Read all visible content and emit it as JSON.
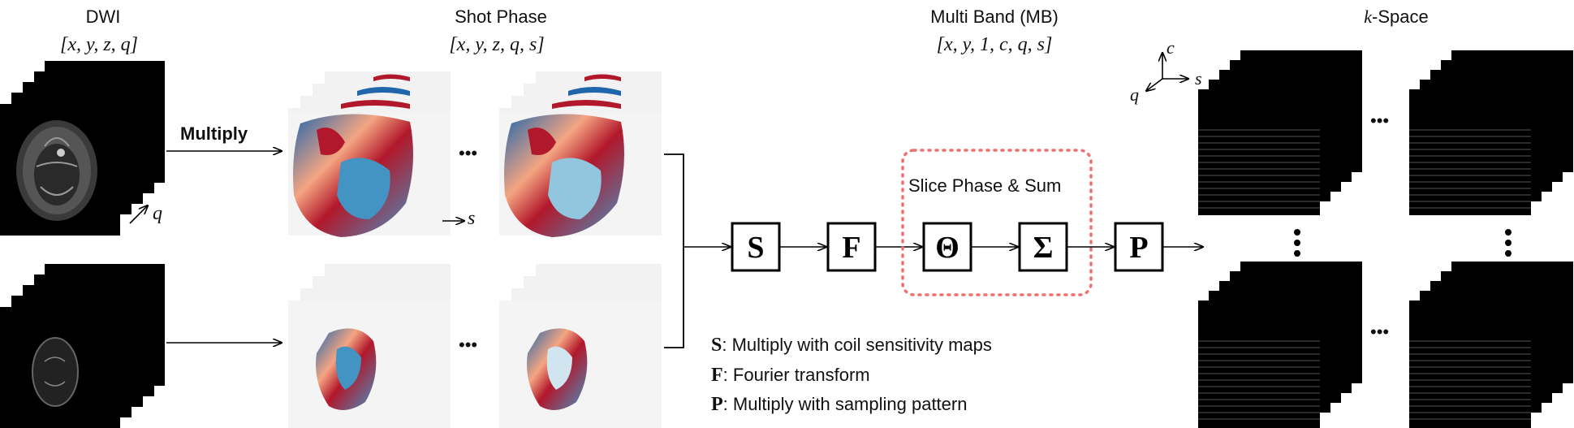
{
  "columns": {
    "dwi": {
      "title": "DWI",
      "dims": "[x, y, z, q]"
    },
    "shot_phase": {
      "title": "Shot Phase",
      "dims": "[x, y, z, q, s]"
    },
    "multi_band": {
      "title": "Multi Band (MB)",
      "dims": "[x, y, 1, c, q, s]"
    },
    "kspace": {
      "title_italic": "k",
      "title_rest": "-Space"
    }
  },
  "annotations": {
    "multiply": "Multiply",
    "q_axis": "q",
    "s_axis": "s",
    "ellipsis": "•••",
    "slice_phase_sum": "Slice Phase & Sum",
    "axes_c": "c",
    "axes_s": "s",
    "axes_q": "q"
  },
  "operators": {
    "S": "S",
    "F": "F",
    "Theta": "Θ",
    "Sigma": "Σ",
    "P": "P"
  },
  "legend": [
    {
      "symbol": "S",
      "text": ": Multiply with coil sensitivity maps"
    },
    {
      "symbol": "F",
      "text": ": Fourier transform"
    },
    {
      "symbol": "P",
      "text": ": Multiply with sampling pattern"
    }
  ],
  "colors": {
    "phase_red": "#b2182b",
    "phase_blue": "#2166ac",
    "dashed_box": "#f07070"
  }
}
